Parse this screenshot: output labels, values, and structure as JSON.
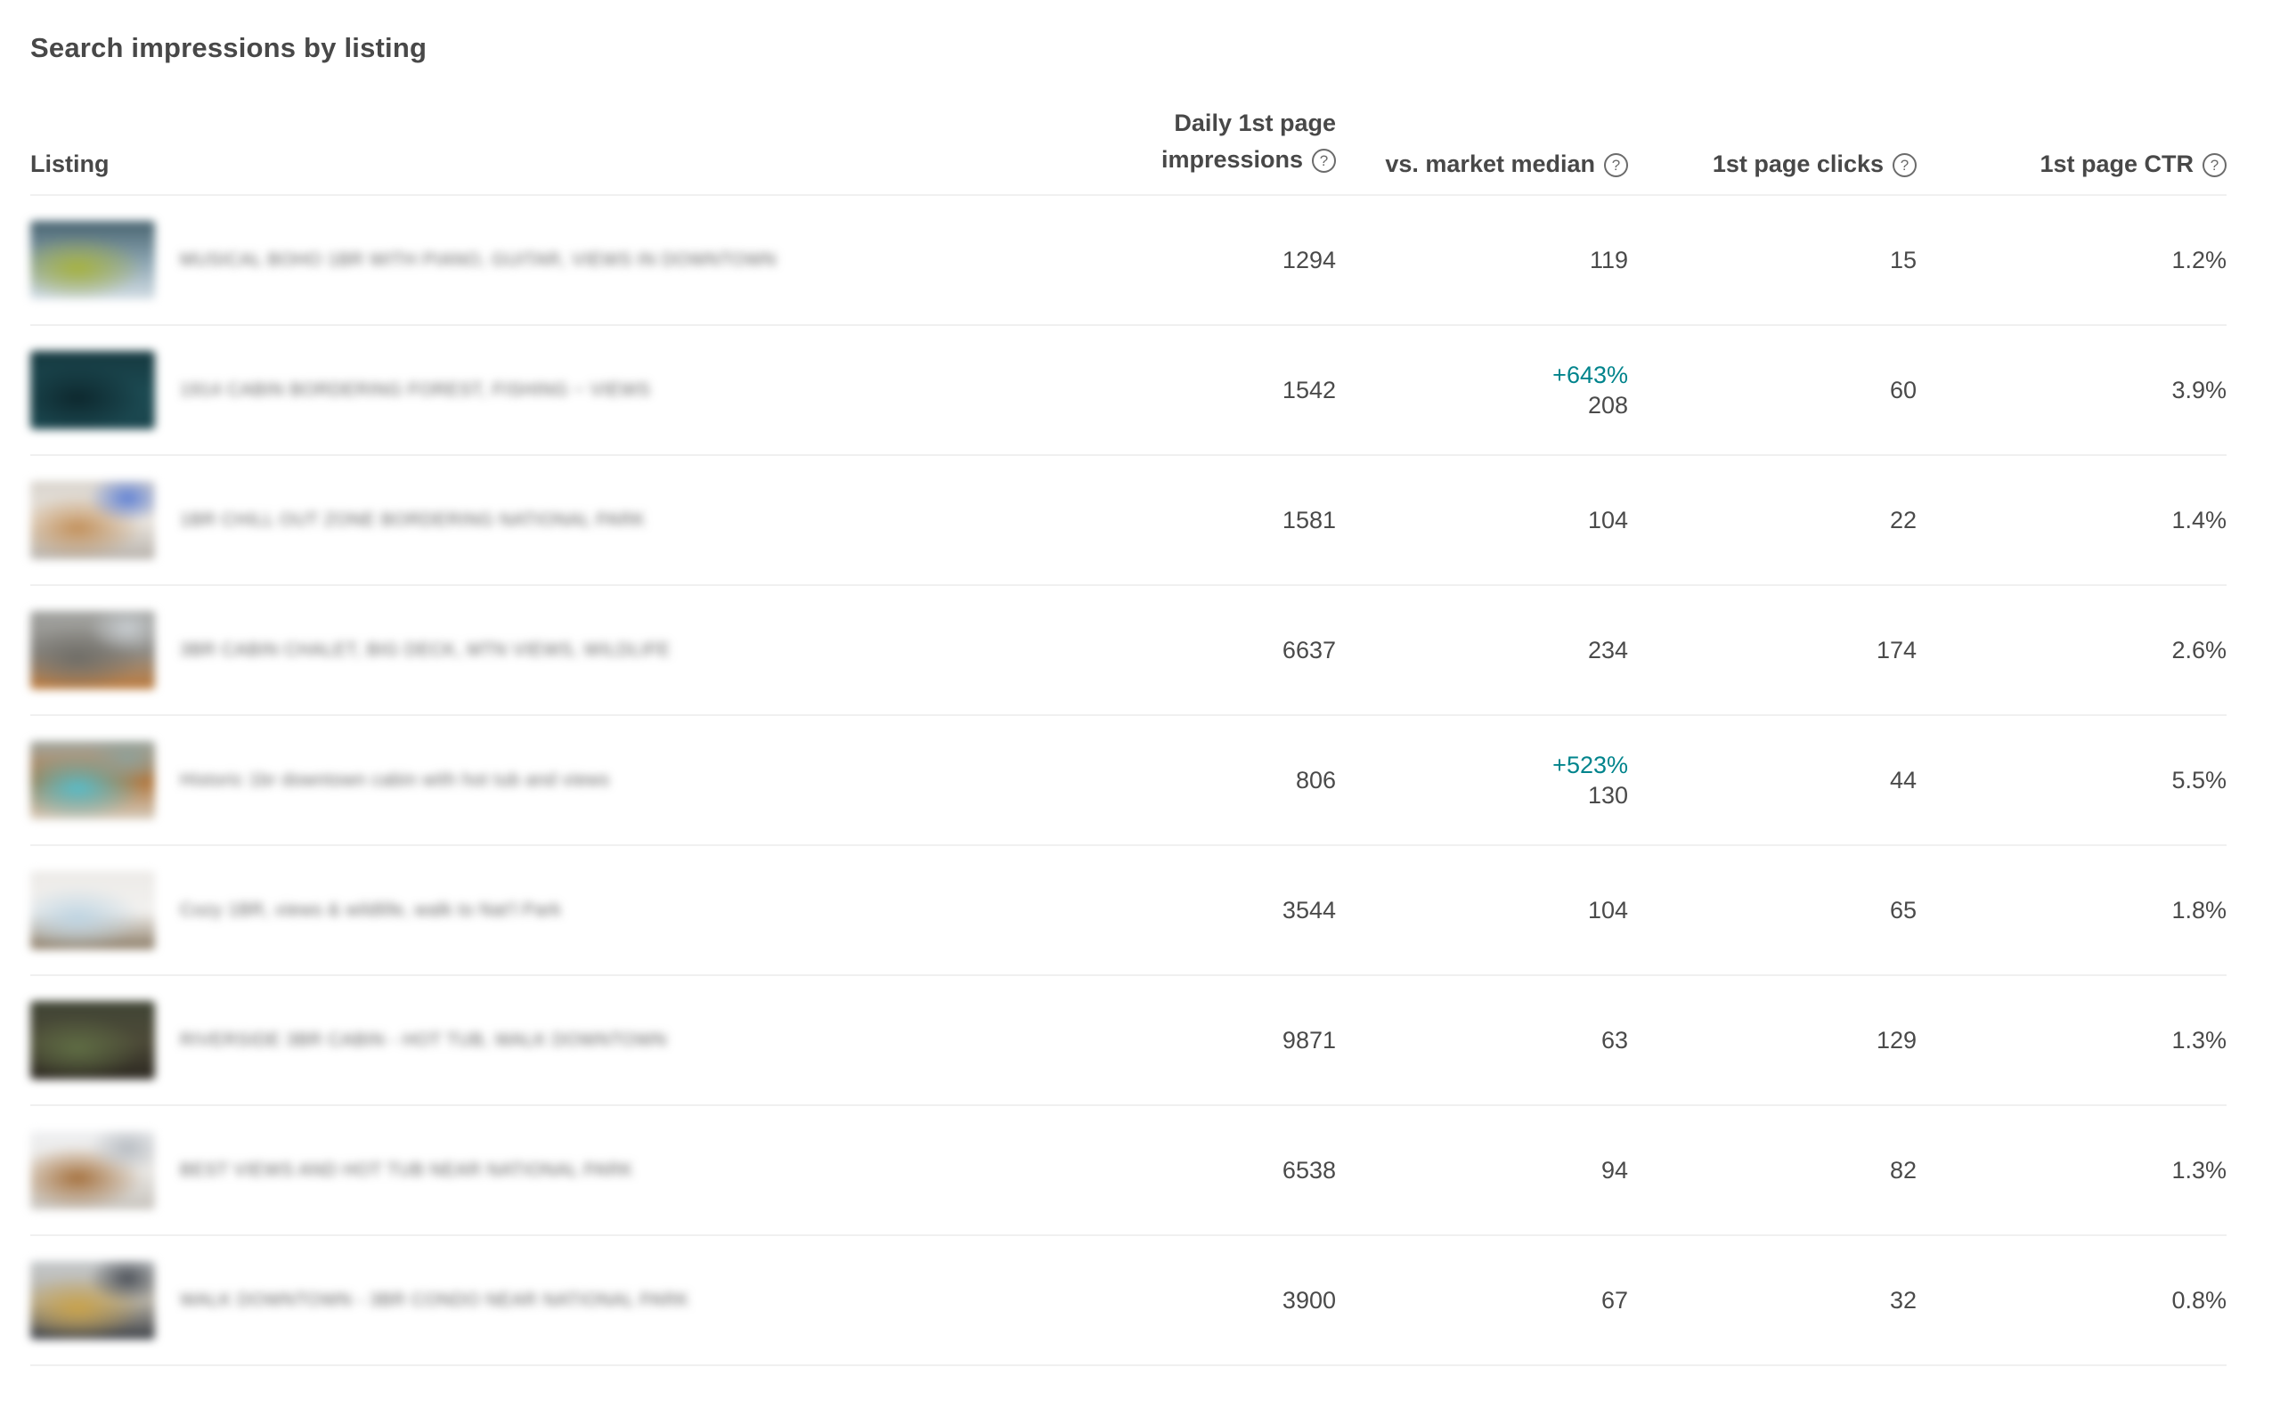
{
  "page": {
    "title": "Search impressions by listing"
  },
  "colors": {
    "accent_teal": "#00848c",
    "text_primary": "#484848",
    "separator": "#f0f0f0"
  },
  "table": {
    "columns": {
      "listing": "Listing",
      "impressions_line1": "Daily 1st page",
      "impressions_line2": "impressions",
      "median": "vs. market median",
      "clicks": "1st page clicks",
      "ctr": "1st page CTR",
      "help_glyph": "?"
    },
    "rows": [
      {
        "title": "MUSICAL BOHO 1BR WITH PIANO, GUITAR, VIEWS IN DOWNTOWN",
        "impressions": "1294",
        "median_delta": null,
        "median": "119",
        "clicks": "15",
        "ctr": "1.2%",
        "thumb_colors": [
          "#46626e",
          "#8ba4b1",
          "#a6b23f",
          "#d5dfe6",
          null
        ]
      },
      {
        "title": "1914 CABIN BORDERING FOREST, FISHING ~ VIEWS",
        "impressions": "1542",
        "median_delta": "+643%",
        "median": "208",
        "clicks": "60",
        "ctr": "3.9%",
        "thumb_colors": [
          "#15383f",
          "#1c4a52",
          "#0d272d",
          "#1a454d",
          null
        ]
      },
      {
        "title": "1BR CHILL OUT ZONE BORDERING NATIONAL PARK",
        "impressions": "1581",
        "median_delta": null,
        "median": "104",
        "clicks": "22",
        "ctr": "1.4%",
        "thumb_colors": [
          "#d9d4cd",
          "#eae5de",
          "#c2905a",
          "#b7b2ac",
          "#5d7fd4"
        ]
      },
      {
        "title": "3BR CABIN CHALET, BIG DECK, MTN VIEWS, WILDLIFE",
        "impressions": "6637",
        "median_delta": null,
        "median": "234",
        "clicks": "174",
        "ctr": "2.6%",
        "thumb_colors": [
          "#a3a4a1",
          "#8e8c87",
          "#6f6d67",
          "#c07c3c",
          "#c8cdd1"
        ]
      },
      {
        "title": "Historic 1br downtown cabin with hot tub and views",
        "impressions": "806",
        "median_delta": "+523%",
        "median": "130",
        "clicks": "44",
        "ctr": "5.5%",
        "thumb_colors": [
          "#a2a9a4",
          "#b07840",
          "#57bcc9",
          "#d7cdbf",
          "#8fa098"
        ]
      },
      {
        "title": "Cozy 1BR, views & wildlife, walk to Nat'l Park",
        "impressions": "3544",
        "median_delta": null,
        "median": "104",
        "clicks": "65",
        "ctr": "1.8%",
        "thumb_colors": [
          "#eceae7",
          "#f2f1ef",
          "#bed4e2",
          "#8a7a64",
          null
        ]
      },
      {
        "title": "RIVERSIDE 3BR CABIN - HOT TUB, WALK DOWNTOWN",
        "impressions": "9871",
        "median_delta": null,
        "median": "63",
        "clicks": "129",
        "ctr": "1.3%",
        "thumb_colors": [
          "#3f4434",
          "#4d4a38",
          "#5f6d44",
          "#2b2720",
          null
        ]
      },
      {
        "title": "BEST VIEWS AND HOT TUB NEAR NATIONAL PARK",
        "impressions": "6538",
        "median_delta": null,
        "median": "94",
        "clicks": "82",
        "ctr": "1.3%",
        "thumb_colors": [
          "#eff0f2",
          "#e8e6e2",
          "#a5713e",
          "#c7c3bd",
          "#b7bcc2"
        ]
      },
      {
        "title": "WALK DOWNTOWN - 3BR CONDO NEAR NATIONAL PARK",
        "impressions": "3900",
        "median_delta": null,
        "median": "67",
        "clicks": "32",
        "ctr": "0.8%",
        "thumb_colors": [
          "#c5c9cc",
          "#b5b0a4",
          "#c9a24a",
          "#3a3e45",
          "#4a4f57"
        ]
      }
    ]
  }
}
